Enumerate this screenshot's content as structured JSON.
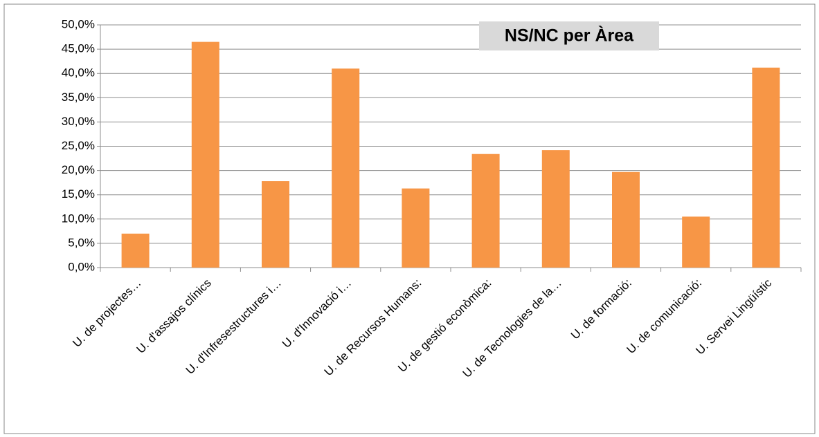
{
  "chart_data": {
    "type": "bar",
    "title": "NS/NC per Àrea",
    "categories": [
      "U. de projectes…",
      "U. d'assajos clínics",
      "U. d'Infresestructures i…",
      "U. d'Innovació i…",
      "U. de Recursos Humans:",
      "U. de gestió econòmica:",
      "U. de Tecnologies de la…",
      "U. de formació:",
      "U. de comunicació:",
      "U. Servei Lingüístic"
    ],
    "values": [
      7.0,
      46.5,
      17.8,
      41.0,
      16.3,
      23.4,
      24.2,
      19.7,
      10.5,
      41.2
    ],
    "color": "#f79646",
    "ylim": [
      0,
      50
    ],
    "yticks": [
      {
        "value": 0,
        "label": "0,0%"
      },
      {
        "value": 5,
        "label": "5,0%"
      },
      {
        "value": 10,
        "label": "10,0%"
      },
      {
        "value": 15,
        "label": "15,0%"
      },
      {
        "value": 20,
        "label": "20,0%"
      },
      {
        "value": 25,
        "label": "25,0%"
      },
      {
        "value": 30,
        "label": "30,0%"
      },
      {
        "value": 35,
        "label": "35,0%"
      },
      {
        "value": 40,
        "label": "40,0%"
      },
      {
        "value": 45,
        "label": "45,0%"
      },
      {
        "value": 50,
        "label": "50,0%"
      }
    ],
    "grid": true
  }
}
